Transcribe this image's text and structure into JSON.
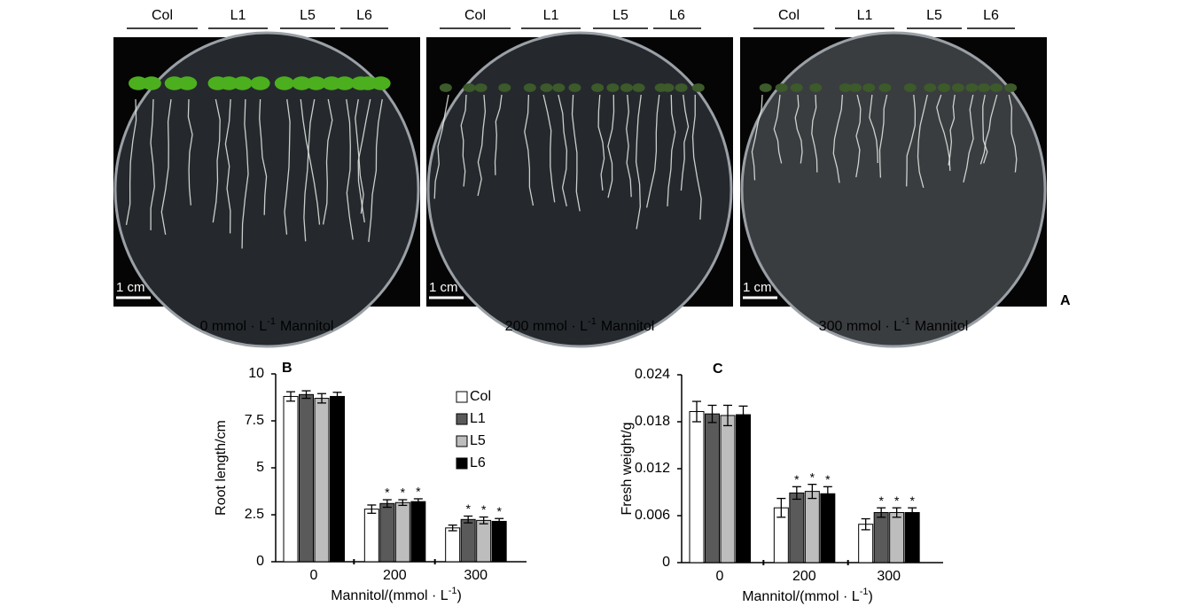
{
  "panels": [
    "A",
    "B",
    "C"
  ],
  "photos": [
    {
      "groups": [
        "Col",
        "L1",
        "L5",
        "L6"
      ],
      "scale_bar": "1 cm",
      "caption": {
        "pre": "0 mmol · L",
        "sup": "-1",
        "post": "Mannitol"
      }
    },
    {
      "groups": [
        "Col",
        "L1",
        "L5",
        "L6"
      ],
      "scale_bar": "1 cm",
      "caption": {
        "pre": "200 mmol · L",
        "sup": "-1",
        "post": "Mannitol"
      }
    },
    {
      "groups": [
        "Col",
        "L1",
        "L5",
        "L6"
      ],
      "scale_bar": "1 cm",
      "caption": {
        "pre": "300 mmol · L",
        "sup": "-1",
        "post": "Mannitol"
      }
    }
  ],
  "chart_data": [
    {
      "type": "bar",
      "ylabel": "Root length/cm",
      "xlabel": {
        "pre": "Mannitol/(mmol · L",
        "sup": "-1",
        "post": ")"
      },
      "categories": [
        "0",
        "200",
        "300"
      ],
      "ylim": [
        0,
        10
      ],
      "yticks": [
        0,
        2.5,
        5,
        7.5,
        10
      ],
      "legend": "top-right",
      "series": [
        {
          "name": "Col",
          "color": "#ffffff",
          "values": [
            8.8,
            2.8,
            1.8
          ],
          "errors": [
            0.25,
            0.22,
            0.15
          ]
        },
        {
          "name": "L1",
          "color": "#5a5a5a",
          "values": [
            8.9,
            3.1,
            2.25
          ],
          "errors": [
            0.2,
            0.2,
            0.18
          ],
          "significance": [
            null,
            "*",
            "*"
          ]
        },
        {
          "name": "L5",
          "color": "#bdbdbd",
          "values": [
            8.7,
            3.15,
            2.2
          ],
          "errors": [
            0.25,
            0.15,
            0.18
          ],
          "significance": [
            null,
            "*",
            "*"
          ]
        },
        {
          "name": "L6",
          "color": "#000000",
          "values": [
            8.8,
            3.2,
            2.15
          ],
          "errors": [
            0.22,
            0.15,
            0.15
          ],
          "significance": [
            null,
            "*",
            "*"
          ]
        }
      ]
    },
    {
      "type": "bar",
      "ylabel": "Fresh weight/g",
      "xlabel": {
        "pre": "Mannitol/(mmol · L",
        "sup": "-1",
        "post": ")"
      },
      "categories": [
        "0",
        "200",
        "300"
      ],
      "ylim": [
        0,
        0.024
      ],
      "yticks": [
        0,
        0.006,
        0.012,
        0.018,
        0.024
      ],
      "series": [
        {
          "name": "Col",
          "color": "#ffffff",
          "values": [
            0.0193,
            0.007,
            0.0049
          ],
          "errors": [
            0.0013,
            0.0012,
            0.0007
          ]
        },
        {
          "name": "L1",
          "color": "#5a5a5a",
          "values": [
            0.019,
            0.0089,
            0.0064
          ],
          "errors": [
            0.0011,
            0.0008,
            0.0006
          ],
          "significance": [
            null,
            "*",
            "*"
          ]
        },
        {
          "name": "L5",
          "color": "#bdbdbd",
          "values": [
            0.0188,
            0.0091,
            0.0064
          ],
          "errors": [
            0.0013,
            0.0009,
            0.0006
          ],
          "significance": [
            null,
            "*",
            "*"
          ]
        },
        {
          "name": "L6",
          "color": "#000000",
          "values": [
            0.0189,
            0.0088,
            0.0064
          ],
          "errors": [
            0.0011,
            0.0009,
            0.0006
          ],
          "significance": [
            null,
            "*",
            "*"
          ]
        }
      ]
    }
  ]
}
